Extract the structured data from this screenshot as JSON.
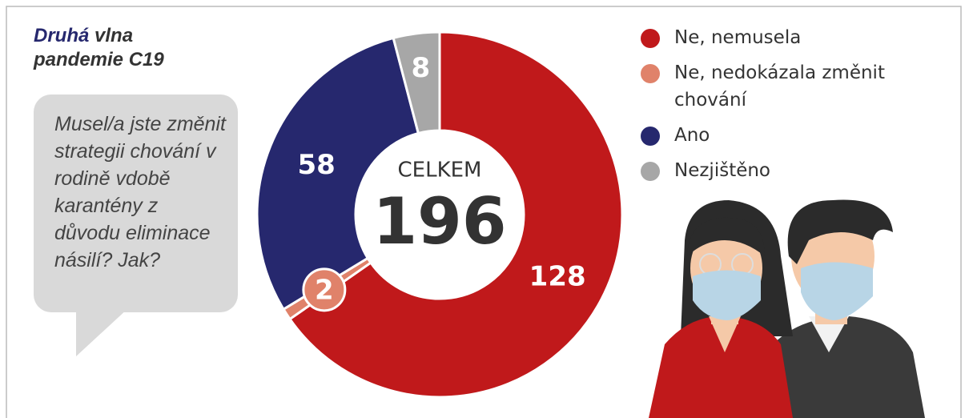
{
  "chart_data": {
    "type": "donut",
    "title_emphasis": "Druhá",
    "title": "vlna pandemie C19",
    "question": "Musel/a jste změnit strategii chování v rodině vdobě karantény z důvodu eliminace násilí? Jak?",
    "center_label": "CELKEM",
    "total": 196,
    "series": [
      {
        "name": "Ne, nemusela",
        "color": "#c0191b",
        "value": 128
      },
      {
        "name": "Ne, nedokázala změnit chování",
        "color": "#e0826a",
        "value": 2
      },
      {
        "name": "Ano",
        "color": "#26286e",
        "value": 58
      },
      {
        "name": "Nezjištěno",
        "color": "#a7a7a7",
        "value": 8
      }
    ]
  }
}
